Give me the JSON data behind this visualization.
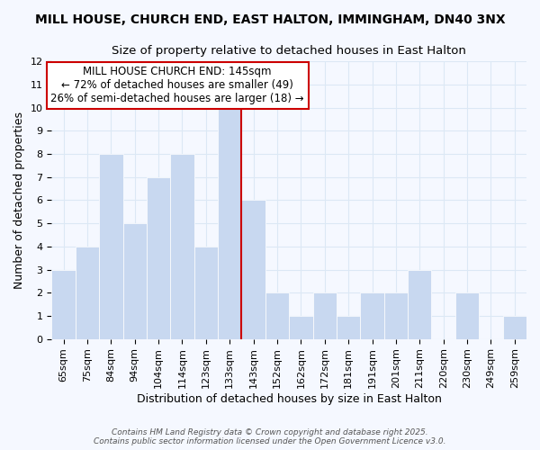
{
  "title": "MILL HOUSE, CHURCH END, EAST HALTON, IMMINGHAM, DN40 3NX",
  "subtitle": "Size of property relative to detached houses in East Halton",
  "xlabel": "Distribution of detached houses by size in East Halton",
  "ylabel": "Number of detached properties",
  "categories": [
    "65sqm",
    "75sqm",
    "84sqm",
    "94sqm",
    "104sqm",
    "114sqm",
    "123sqm",
    "133sqm",
    "143sqm",
    "152sqm",
    "162sqm",
    "172sqm",
    "181sqm",
    "191sqm",
    "201sqm",
    "211sqm",
    "220sqm",
    "230sqm",
    "249sqm",
    "259sqm"
  ],
  "values": [
    3,
    4,
    8,
    5,
    7,
    8,
    4,
    10,
    6,
    2,
    1,
    2,
    1,
    2,
    2,
    3,
    0,
    2,
    0,
    1
  ],
  "bar_color": "#c8d8f0",
  "bar_edge_color": "#c8d8f0",
  "vline_index": 8,
  "vline_color": "#cc0000",
  "annotation_title": "MILL HOUSE CHURCH END: 145sqm",
  "annotation_line1": "← 72% of detached houses are smaller (49)",
  "annotation_line2": "26% of semi-detached houses are larger (18) →",
  "annotation_box_color": "#cc0000",
  "ylim": [
    0,
    12
  ],
  "yticks": [
    0,
    1,
    2,
    3,
    4,
    5,
    6,
    7,
    8,
    9,
    10,
    11,
    12
  ],
  "background_color": "#f5f8ff",
  "grid_color": "#dce8f5",
  "footer_line1": "Contains HM Land Registry data © Crown copyright and database right 2025.",
  "footer_line2": "Contains public sector information licensed under the Open Government Licence v3.0.",
  "title_fontsize": 10,
  "subtitle_fontsize": 9.5,
  "ylabel_fontsize": 9,
  "xlabel_fontsize": 9,
  "tick_fontsize": 8,
  "annot_fontsize": 8.5
}
